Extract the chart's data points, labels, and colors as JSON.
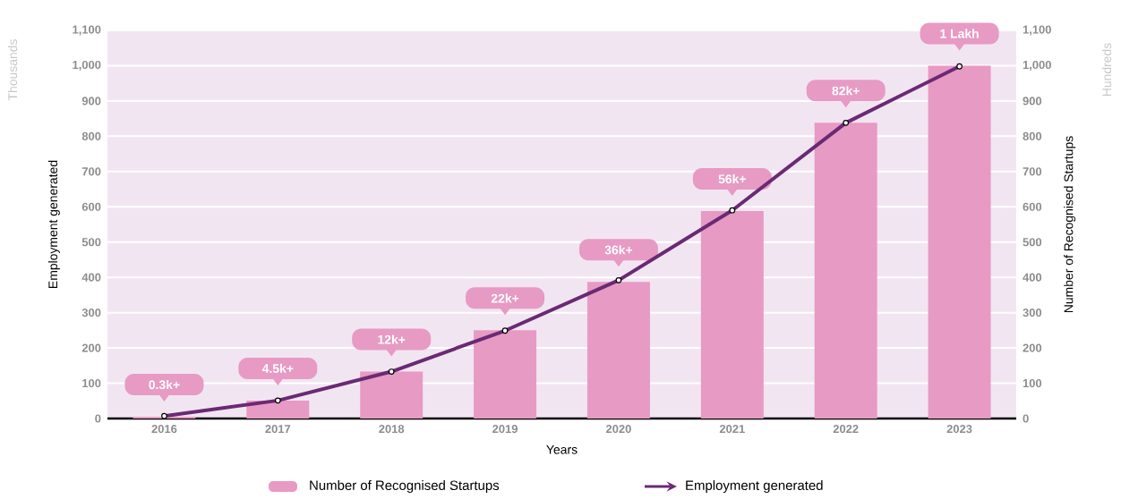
{
  "chart_data": {
    "type": "bar",
    "categories": [
      "2016",
      "2017",
      "2018",
      "2019",
      "2020",
      "2021",
      "2022",
      "2023"
    ],
    "series": [
      {
        "name": "Number of Recognised Startups",
        "axis": "y2",
        "color": "#e79ac4",
        "values": [
          5,
          51,
          133,
          250,
          387,
          588,
          838,
          1000
        ]
      },
      {
        "name": "Employment generated",
        "type": "line",
        "axis": "y",
        "color": "#6a2a73",
        "values": [
          7,
          51,
          133,
          249,
          392,
          590,
          838,
          998
        ],
        "marker": "circle",
        "line_style": "solid"
      }
    ],
    "xlabel": "Years",
    "ylabel": "Employment generated",
    "y2label": "Number of Recognised Startups",
    "ylim": [
      0,
      1100
    ],
    "yticks": [
      0,
      100,
      200,
      300,
      400,
      500,
      600,
      700,
      800,
      900,
      {
        "value": 1000,
        "label": "1,000"
      },
      {
        "value": 1100,
        "label": "1,100"
      }
    ],
    "y2lim": [
      0,
      1100
    ],
    "y2ticks": [
      0,
      100,
      200,
      300,
      400,
      500,
      600,
      700,
      800,
      900,
      {
        "value": 1000,
        "label": "1,000"
      },
      {
        "value": 1100,
        "label": "1,100"
      }
    ],
    "annotations": [
      "Thousands",
      "Hundreds",
      {
        "text": "0.3k+",
        "x": "2016",
        "y": 5
      },
      {
        "text": "4.5k+",
        "x": "2017",
        "y": 51
      },
      {
        "text": "12k+",
        "x": "2018",
        "y": 133
      },
      {
        "text": "22k+",
        "x": "2019",
        "y": 250
      },
      {
        "text": "36k+",
        "x": "2020",
        "y": 387
      },
      {
        "text": "56k+",
        "x": "2021",
        "y": 588
      },
      {
        "text": "82k+",
        "x": "2022",
        "y": 838
      },
      {
        "text": "1 Lakh",
        "x": "2023",
        "y": 1000
      }
    ],
    "grid": "y",
    "legend": "bottom"
  }
}
